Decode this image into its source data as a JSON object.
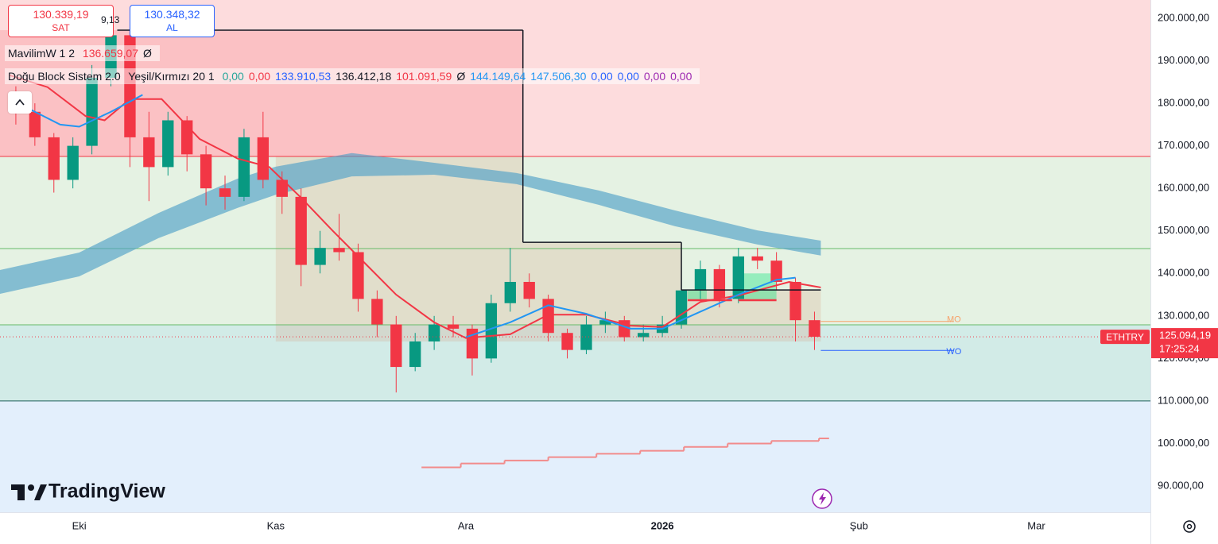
{
  "chart_data": {
    "type": "candlestick",
    "symbol": "ETHTRY",
    "last_price_label": "125.094,19",
    "countdown": "17:25:24",
    "up_color": "#089981",
    "down_color": "#f23645",
    "grid": false,
    "x": [
      -10,
      -7,
      -4,
      -1,
      2,
      5,
      8,
      11,
      14,
      17,
      20,
      23,
      26,
      29,
      32,
      35,
      38,
      41,
      44,
      47,
      50,
      53,
      56,
      59,
      62,
      65,
      68,
      71,
      74,
      77,
      80,
      83,
      86,
      89,
      92,
      95,
      98,
      101,
      104,
      107,
      110,
      113,
      116
    ],
    "open": [
      182000,
      178000,
      172000,
      162000,
      170000,
      186000,
      196000,
      172000,
      165000,
      176000,
      168000,
      160000,
      158000,
      172000,
      162000,
      158000,
      142000,
      146000,
      145000,
      134000,
      128000,
      118000,
      124000,
      128000,
      127000,
      120000,
      133000,
      138000,
      134000,
      126000,
      122000,
      128000,
      129000,
      125000,
      126000,
      128000,
      136000,
      141000,
      134000,
      144000,
      143000,
      138000,
      129000
    ],
    "high": [
      184000,
      180000,
      173000,
      172000,
      189000,
      199000,
      197000,
      178000,
      178000,
      177000,
      170000,
      163000,
      174000,
      178000,
      164000,
      160000,
      150000,
      154000,
      147000,
      136000,
      130000,
      126000,
      130000,
      130000,
      128000,
      135000,
      146000,
      140000,
      135000,
      127000,
      130000,
      131000,
      130000,
      128000,
      130000,
      138000,
      143000,
      142000,
      146000,
      146000,
      145000,
      139000,
      131000
    ],
    "low": [
      175000,
      170000,
      159000,
      160000,
      168000,
      184000,
      165000,
      157000,
      163000,
      164000,
      156000,
      155000,
      157000,
      160000,
      154000,
      137000,
      140000,
      143000,
      131000,
      125000,
      112000,
      117000,
      122000,
      125000,
      116000,
      119000,
      131000,
      132000,
      124000,
      120000,
      121000,
      126000,
      124000,
      124000,
      125000,
      127000,
      134000,
      132000,
      133000,
      141000,
      136000,
      124000,
      122000
    ],
    "close": [
      178000,
      172000,
      162000,
      170000,
      186000,
      196000,
      172000,
      165000,
      176000,
      168000,
      160000,
      158000,
      172000,
      162000,
      158000,
      142000,
      146000,
      145000,
      134000,
      128000,
      118000,
      124000,
      128000,
      127000,
      120000,
      133000,
      138000,
      134000,
      126000,
      122000,
      128000,
      129000,
      125000,
      126000,
      128000,
      136000,
      141000,
      134000,
      144000,
      143000,
      138000,
      129000,
      125094.19
    ],
    "xlim": [
      -12.5,
      169
    ],
    "xticks": [
      {
        "value": 0,
        "label": "Eki"
      },
      {
        "value": 31,
        "label": "Kas"
      },
      {
        "value": 61,
        "label": "Ara"
      },
      {
        "value": 92,
        "label": "2026",
        "bold": true
      },
      {
        "value": 123,
        "label": "Şub"
      },
      {
        "value": 151,
        "label": "Mar"
      }
    ],
    "ylim": [
      83840,
      204290
    ],
    "yticks": [
      {
        "value": 200000,
        "label": "200.000,00"
      },
      {
        "value": 190000,
        "label": "190.000,00"
      },
      {
        "value": 180000,
        "label": "180.000,00"
      },
      {
        "value": 170000,
        "label": "170.000,00"
      },
      {
        "value": 160000,
        "label": "160.000,00"
      },
      {
        "value": 150000,
        "label": "150.000,00"
      },
      {
        "value": 140000,
        "label": "140.000,00"
      },
      {
        "value": 130000,
        "label": "130.000,00"
      },
      {
        "value": 120000,
        "label": "120.000,00"
      },
      {
        "value": 110000,
        "label": "110.000,00"
      },
      {
        "value": 100000,
        "label": "100.000,00"
      },
      {
        "value": 90000,
        "label": "90.000,00"
      }
    ],
    "zones": [
      {
        "from": 167500,
        "to": 204290,
        "color": "#fddcdd"
      },
      {
        "from": 127900,
        "to": 167500,
        "color": "#e5f2e3"
      },
      {
        "from": 110000,
        "to": 127900,
        "color": "#d2ebe7"
      },
      {
        "from": 83840,
        "to": 110000,
        "color": "#e3effc"
      }
    ],
    "levels": [
      {
        "value": 167500,
        "color": "#f23645"
      },
      {
        "value": 145850,
        "color": "#66bb6a"
      },
      {
        "value": 127900,
        "color": "#66bb6a"
      },
      {
        "value": 110000,
        "color": "#1e5f5a"
      }
    ],
    "boxes": [
      {
        "x": [
          -12.5,
          70
        ],
        "top": 197200,
        "bottom": 167500,
        "color": "rgba(242,54,69,0.16)"
      },
      {
        "x": [
          31,
          70
        ],
        "top": 167500,
        "bottom": 124000,
        "color": "rgba(214,150,120,0.22)"
      },
      {
        "x": [
          70,
          95
        ],
        "top": 147300,
        "bottom": 124000,
        "color": "rgba(214,150,120,0.22)"
      },
      {
        "x": [
          95,
          117
        ],
        "top": 136100,
        "bottom": 124000,
        "color": "rgba(214,150,120,0.22)"
      },
      {
        "x": [
          96,
          99
        ],
        "top": 136000,
        "bottom": 133700,
        "color": "rgba(0,230,118,0.35)"
      },
      {
        "x": [
          104,
          110
        ],
        "top": 140000,
        "bottom": 133700,
        "color": "rgba(0,230,118,0.35)"
      }
    ],
    "band": {
      "color": "rgba(80,160,200,0.65)",
      "x": [
        -12.5,
        0,
        12.5,
        25,
        31,
        43,
        56,
        69,
        82,
        94,
        107,
        117
      ],
      "upper": [
        140800,
        144900,
        154200,
        162300,
        165100,
        168300,
        166000,
        163600,
        159500,
        154800,
        150100,
        147700
      ],
      "lower": [
        135200,
        139300,
        148300,
        155400,
        158500,
        162800,
        163200,
        161000,
        156100,
        151100,
        146800,
        144200
      ]
    },
    "series": [
      {
        "color": "#f23645",
        "x": [
          -11,
          -5,
          1,
          4,
          8,
          13,
          19,
          25,
          30,
          35,
          40,
          45,
          50,
          56,
          61,
          68,
          74,
          80,
          87,
          92,
          98,
          104,
          112,
          117
        ],
        "values": [
          186600,
          183800,
          177000,
          176000,
          181000,
          181000,
          171600,
          167000,
          165000,
          157800,
          150000,
          142500,
          135000,
          128500,
          124800,
          125700,
          130300,
          130300,
          127700,
          127400,
          133300,
          134800,
          138000,
          136700
        ]
      },
      {
        "color": "#2196f3",
        "x": [
          -11,
          -7,
          -3,
          0,
          5,
          10,
          20,
          61,
          68,
          74,
          80,
          87,
          92,
          98,
          104,
          110,
          113
        ],
        "values": [
          181000,
          178000,
          175000,
          174500,
          178000,
          182000,
          null,
          125000,
          128500,
          132500,
          130500,
          127000,
          127000,
          131000,
          135000,
          138500,
          139000
        ]
      }
    ],
    "steps": [
      {
        "color": "#131722",
        "width": 1.5,
        "edges": [
          6,
          70,
          95,
          117
        ],
        "values": [
          197200,
          147300,
          136100
        ]
      },
      {
        "color": "#f28b8b",
        "width": 2,
        "edges": [
          54,
          60.2,
          67.1,
          74,
          81.6,
          88.5,
          95.4,
          102.3,
          109.2,
          116.7,
          118.3
        ],
        "values": [
          94400,
          95300,
          96000,
          96800,
          97600,
          98300,
          99200,
          100000,
          100600,
          101200
        ]
      }
    ],
    "short_levels": [
      {
        "x": [
          96,
          103
        ],
        "value": 133700,
        "color": "#f23645"
      },
      {
        "x": [
          104,
          110
        ],
        "value": 133700,
        "color": "#f23645"
      }
    ],
    "markers": [
      {
        "label": "MO",
        "value": 128700,
        "x": [
          117,
          138
        ],
        "color": "#f7a26b"
      },
      {
        "label": "WO",
        "value": 121900,
        "x": [
          117,
          138
        ],
        "color": "#2962ff"
      }
    ]
  },
  "header": {
    "sell_price": "130.339,19",
    "sell_label": "SAT",
    "spread": "9,13",
    "buy_price": "130.348,32",
    "buy_label": "AL"
  },
  "indicators": [
    {
      "name": "MavilimW 1 2",
      "values": [
        {
          "text": "136.659,07",
          "color": "#f23645"
        },
        {
          "text": "Ø",
          "color": "#131722"
        }
      ]
    },
    {
      "name": "Doğu Block Sistem 2.0",
      "params": "Yeşil/Kırmızı 20 1",
      "values": [
        {
          "text": "0,00",
          "color": "#26a69a"
        },
        {
          "text": "0,00",
          "color": "#f23645"
        },
        {
          "text": "133.910,53",
          "color": "#2962ff"
        },
        {
          "text": "136.412,18",
          "color": "#131722"
        },
        {
          "text": "101.091,59",
          "color": "#f23645"
        },
        {
          "text": "Ø",
          "color": "#131722"
        },
        {
          "text": "144.149,64",
          "color": "#2196f3"
        },
        {
          "text": "147.506,30",
          "color": "#2196f3"
        },
        {
          "text": "0,00",
          "color": "#2962ff"
        },
        {
          "text": "0,00",
          "color": "#2962ff"
        },
        {
          "text": "0,00",
          "color": "#9c27b0"
        },
        {
          "text": "0,00",
          "color": "#9c27b0"
        }
      ]
    }
  ],
  "watermark": "TradingView"
}
